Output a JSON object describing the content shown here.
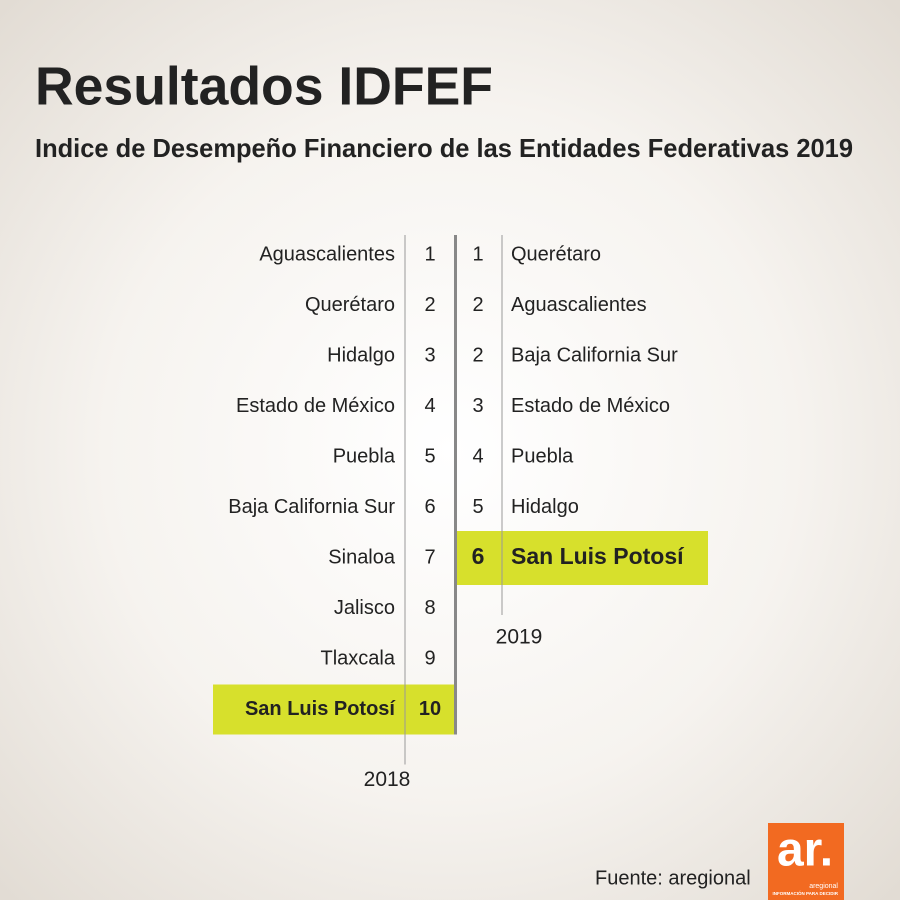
{
  "header": {
    "title": "Resultados IDFEF",
    "subtitle": "Indice de Desempeño Financiero de las Entidades Federativas 2019"
  },
  "rankings_2018": {
    "year": "2018",
    "rows": [
      {
        "state": "Aguascalientes",
        "rank": 1,
        "highlight": false
      },
      {
        "state": "Querétaro",
        "rank": 2,
        "highlight": false
      },
      {
        "state": "Hidalgo",
        "rank": 3,
        "highlight": false
      },
      {
        "state": "Estado de México",
        "rank": 4,
        "highlight": false
      },
      {
        "state": "Puebla",
        "rank": 5,
        "highlight": false
      },
      {
        "state": "Baja California Sur",
        "rank": 6,
        "highlight": false
      },
      {
        "state": "Sinaloa",
        "rank": 7,
        "highlight": false
      },
      {
        "state": "Jalisco",
        "rank": 8,
        "highlight": false
      },
      {
        "state": "Tlaxcala",
        "rank": 9,
        "highlight": false
      },
      {
        "state": "San Luis Potosí",
        "rank": 10,
        "highlight": true
      }
    ]
  },
  "rankings_2019": {
    "year": "2019",
    "rows": [
      {
        "state": "Querétaro",
        "rank": 1,
        "highlight": false
      },
      {
        "state": "Aguascalientes",
        "rank": 2,
        "highlight": false
      },
      {
        "state": "Baja California Sur",
        "rank": 2,
        "highlight": false
      },
      {
        "state": "Estado de México",
        "rank": 3,
        "highlight": false
      },
      {
        "state": "Puebla",
        "rank": 4,
        "highlight": false
      },
      {
        "state": "Hidalgo",
        "rank": 5,
        "highlight": false
      },
      {
        "state": "San Luis Potosí",
        "rank": 6,
        "highlight": true
      }
    ]
  },
  "footer": {
    "source": "Fuente: aregional",
    "logo": "ar.",
    "logo_name": "aregional",
    "logo_tagline": "INFORMACIÓN PARA DECIDIR"
  }
}
